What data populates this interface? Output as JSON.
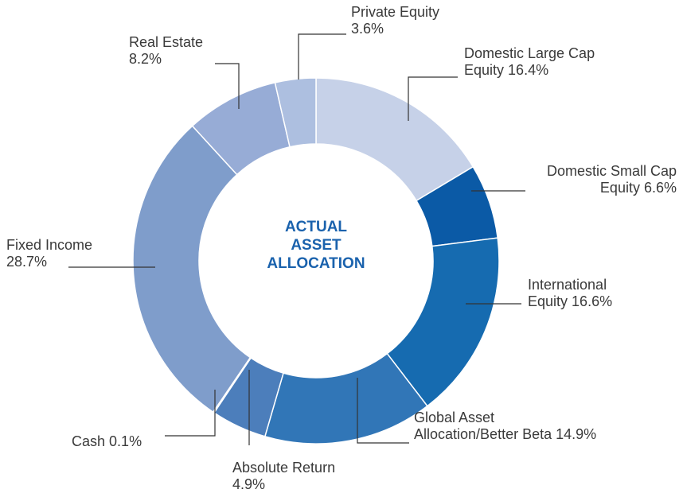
{
  "chart_data": {
    "type": "donut",
    "center_label": "ACTUAL ASSET ALLOCATION",
    "categories": [
      "Domestic Large Cap Equity",
      "Domestic Small Cap Equity",
      "International Equity",
      "Global Asset Allocation/Better Beta",
      "Absolute Return",
      "Cash",
      "Fixed Income",
      "Real Estate",
      "Private Equity"
    ],
    "values": [
      16.4,
      6.6,
      16.6,
      14.9,
      4.9,
      0.1,
      28.7,
      8.2,
      3.6
    ],
    "value_labels": [
      "16.4%",
      "6.6%",
      "16.6%",
      "14.9%",
      "4.9%",
      "0.1%",
      "28.7%",
      "8.2%",
      "3.6%"
    ],
    "colors": [
      "#c6d1e8",
      "#0b5aa6",
      "#166bb0",
      "#3176b7",
      "#4c7ebb",
      "#6a8cc5",
      "#7f9dcb",
      "#97acd6",
      "#adbfe0"
    ]
  }
}
